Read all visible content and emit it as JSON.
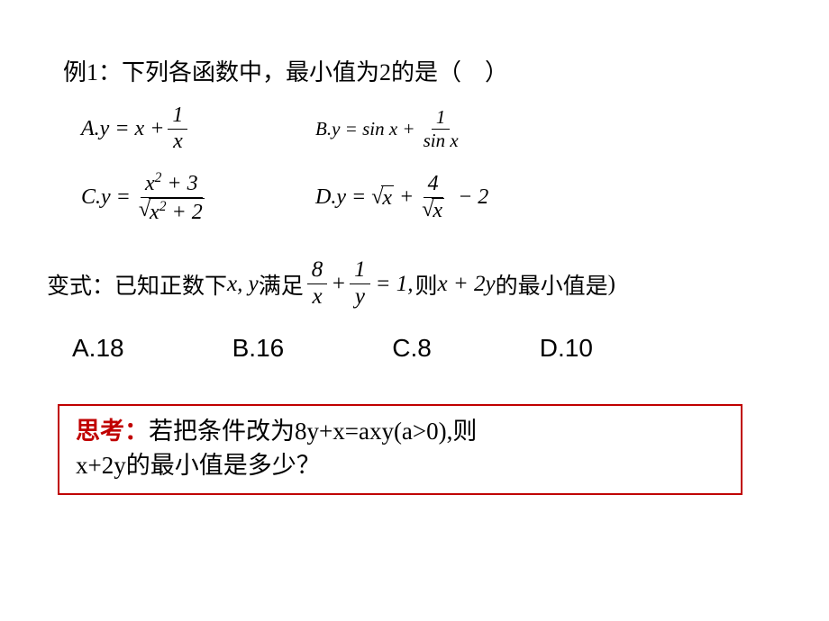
{
  "colors": {
    "text": "#000000",
    "accent": "#c00000",
    "border": "#c00000",
    "bg": "#ffffff"
  },
  "q1": {
    "stem_prefix": "例1：下列各函数中，最小值为",
    "stem_value": "2",
    "stem_suffix": "的是（　）",
    "optA": {
      "label": "A",
      "lhs": "y",
      "op": "=",
      "t1": "x",
      "plus": "+",
      "frac_num": "1",
      "frac_den": "x"
    },
    "optB": {
      "label": "B",
      "lhs": "y",
      "op": "=",
      "t1": "sin x",
      "plus": "+",
      "frac_num": "1",
      "frac_den": "sin x"
    },
    "optC": {
      "label": "C",
      "lhs": "y",
      "op": "=",
      "frac_num": "x² + 3",
      "frac_den_sqrt": "x² + 2"
    },
    "optD": {
      "label": "D",
      "lhs": "y",
      "op": "=",
      "sqrt1": "x",
      "plus": "+",
      "frac_num": "4",
      "frac_den_sqrt": "x",
      "tail": "− 2"
    }
  },
  "variant": {
    "prefix": "变式：已知正数",
    "corrupt1": "下",
    "vars": "x, y",
    "mid1": "满足",
    "f1num": "8",
    "f1den": "x",
    "plus": "+",
    "f2num": "1",
    "f2den": "y",
    "eq": "= 1,",
    "mid2": "则",
    "expr": "x + 2y",
    "suffix": "的最小值是",
    "corrupt2": ")"
  },
  "mc": {
    "A": "A.18",
    "B": "B.16",
    "C": "C.8",
    "D": "D.10"
  },
  "think": {
    "label": "思考：",
    "t1": "若把条件改为",
    "eq": "8y+x=axy(a>0),",
    "t2": "则",
    "br_expr": "x+2y",
    "tail": "的最小值是多少？"
  }
}
